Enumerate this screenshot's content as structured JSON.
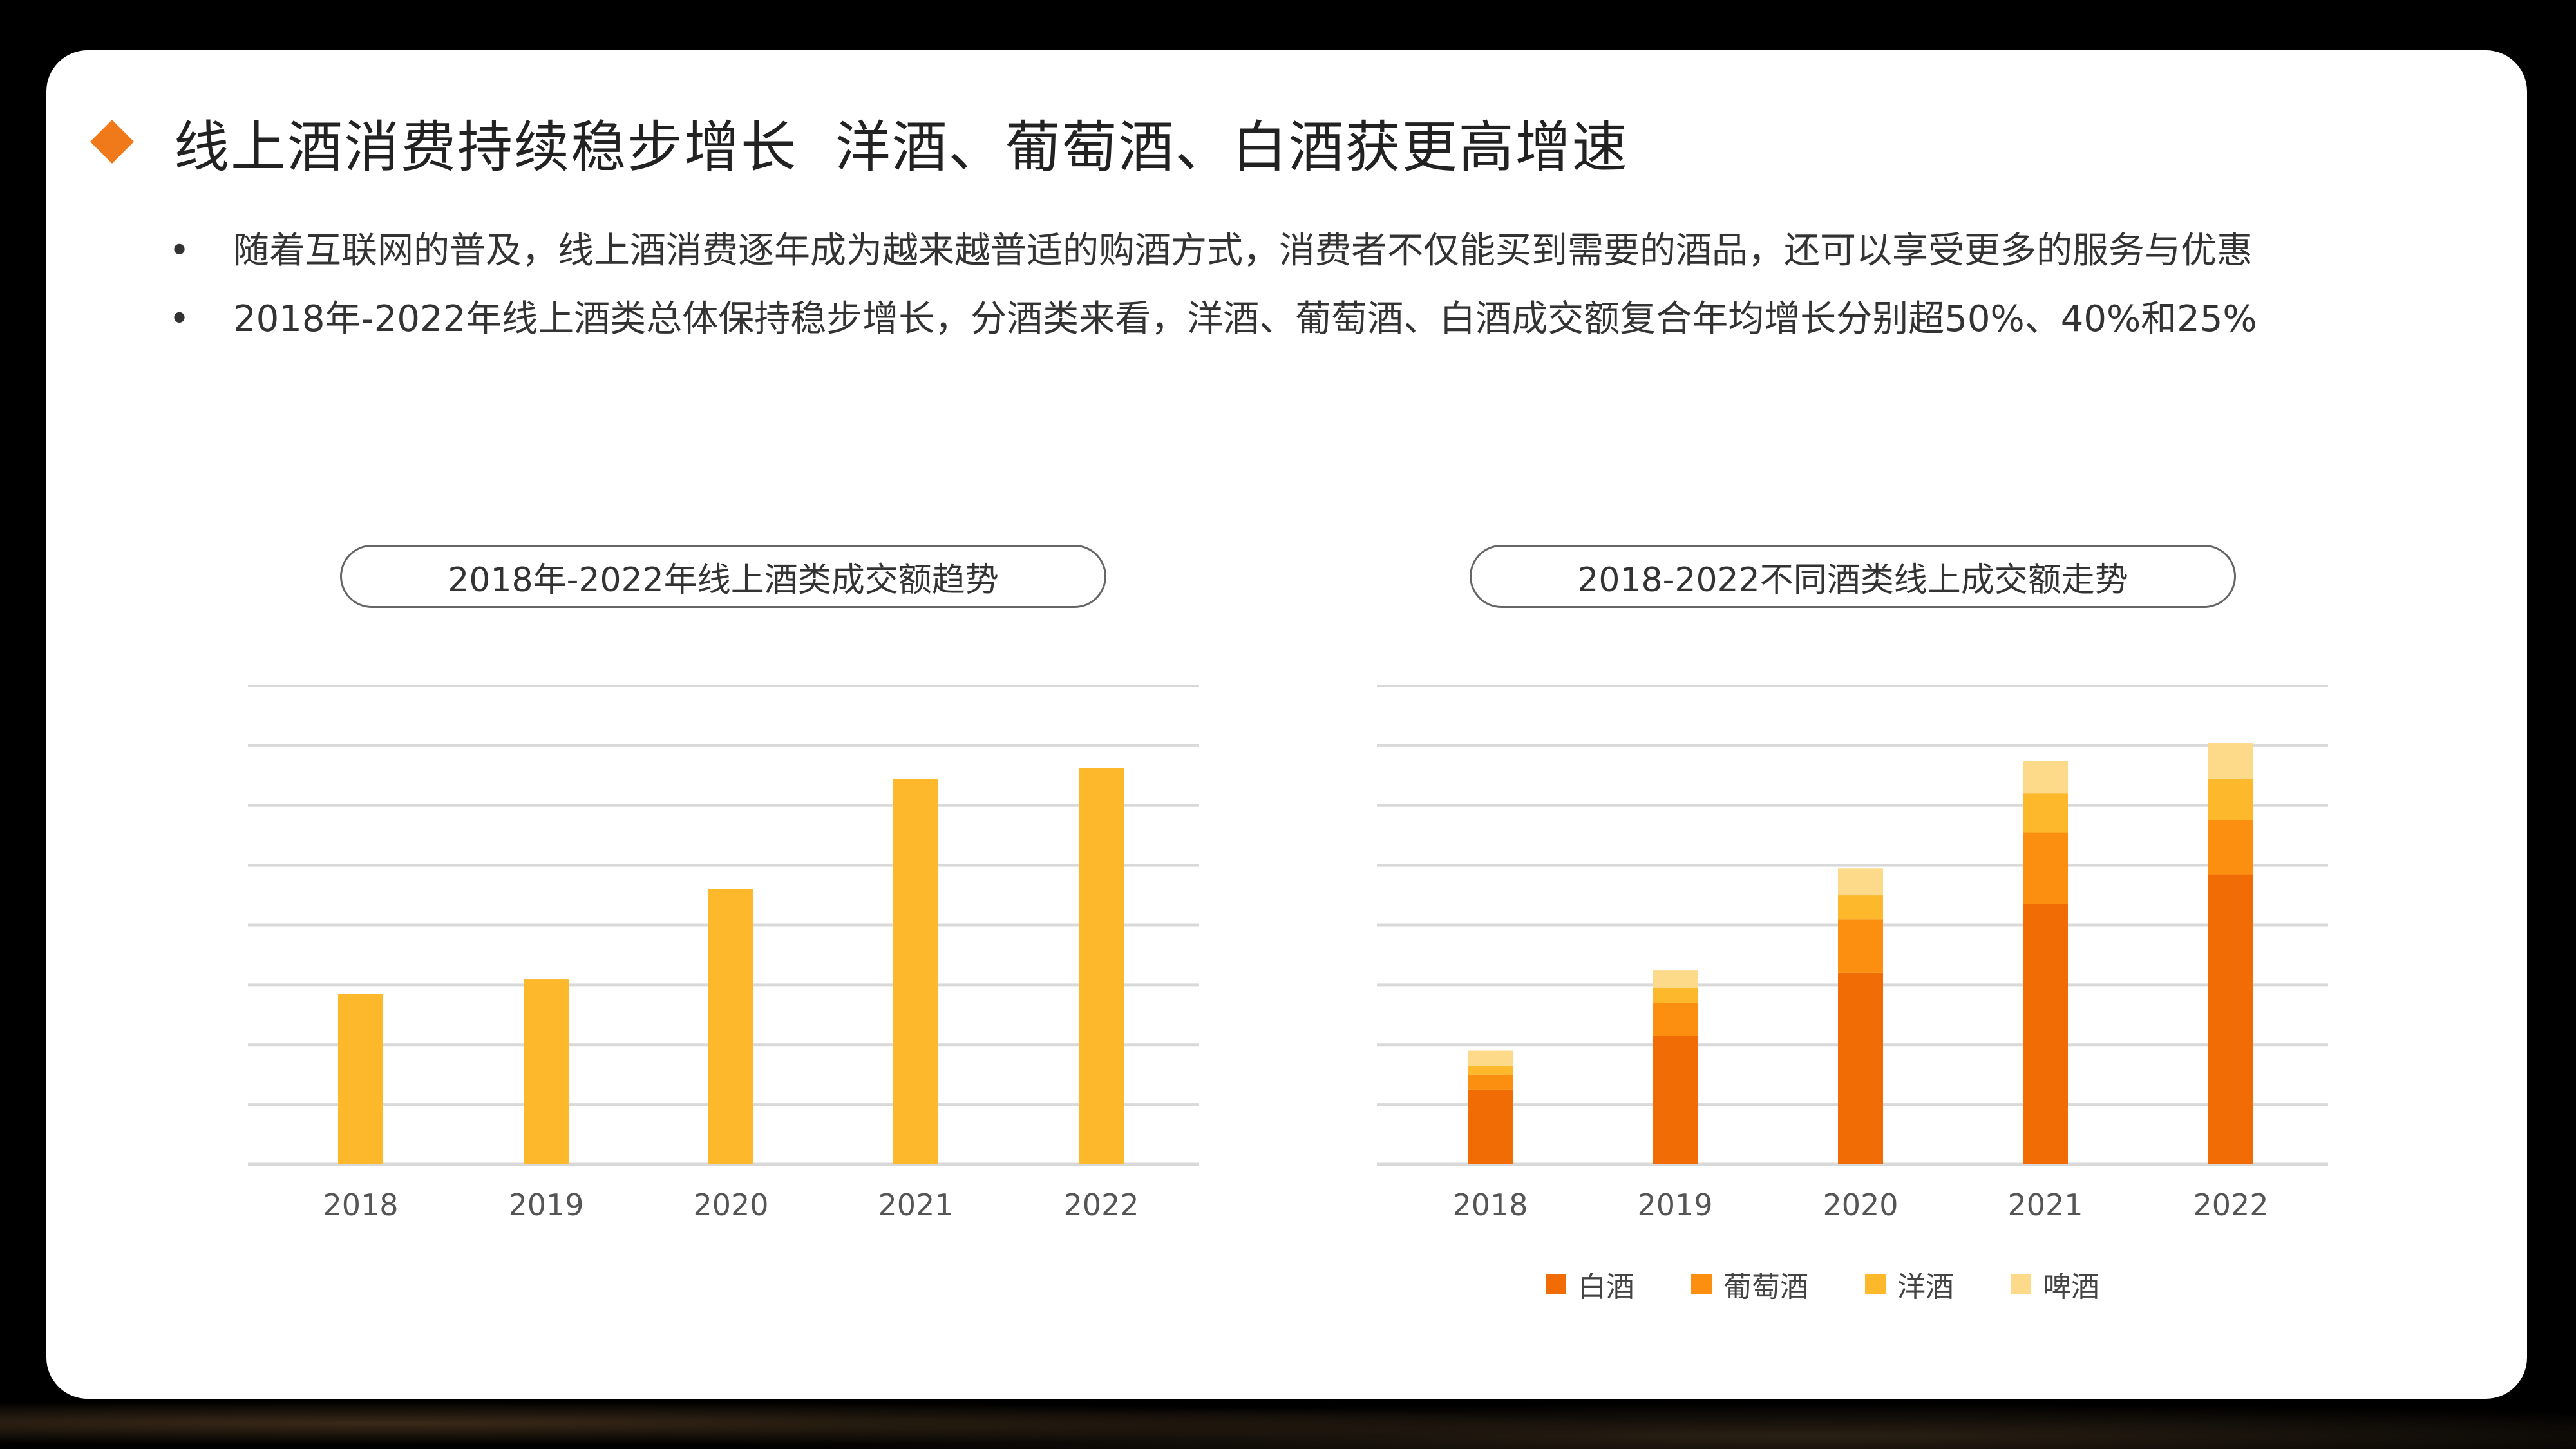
{
  "title": {
    "text": "线上酒消费持续稳步增长  洋酒、葡萄酒、白酒获更高增速"
  },
  "bullets": [
    {
      "text": "随着互联网的普及，线上酒消费逐年成为越来越普适的购酒方式，消费者不仅能买到需要的酒品，还可以享受更多的服务与优惠"
    },
    {
      "text": "2018年-2022年线上酒类总体保持稳步增长，分酒类来看，洋酒、葡萄酒、白酒成交额复合年均增长分别超50%、40%和25%"
    }
  ],
  "colors": {
    "bar": "#fdb82b",
    "white_liquor": "#f26c05",
    "wine": "#fd8f10",
    "foreign": "#fdb82b",
    "beer": "#fdd98a",
    "grid": "#d9d9d9"
  },
  "chart_data": [
    {
      "type": "bar",
      "title": "2018年-2022年线上酒类成交额趋势",
      "categories": [
        "2018",
        "2019",
        "2020",
        "2021",
        "2022"
      ],
      "values": [
        2.85,
        3.1,
        4.6,
        6.45,
        6.63
      ],
      "ylim": [
        0,
        8
      ],
      "grid": true
    },
    {
      "type": "bar",
      "stacked": true,
      "title": "2018-2022不同酒类线上成交额走势",
      "categories": [
        "2018",
        "2019",
        "2020",
        "2021",
        "2022"
      ],
      "series": [
        {
          "name": "白酒",
          "values": [
            1.25,
            2.15,
            3.2,
            4.35,
            4.85
          ]
        },
        {
          "name": "葡萄酒",
          "values": [
            0.25,
            0.55,
            0.9,
            1.2,
            0.9
          ]
        },
        {
          "name": "洋酒",
          "values": [
            0.15,
            0.25,
            0.4,
            0.65,
            0.7
          ]
        },
        {
          "name": "啤酒",
          "values": [
            0.25,
            0.3,
            0.45,
            0.55,
            0.6
          ]
        }
      ],
      "ylim": [
        0,
        8
      ],
      "grid": true,
      "legend_position": "bottom"
    }
  ]
}
